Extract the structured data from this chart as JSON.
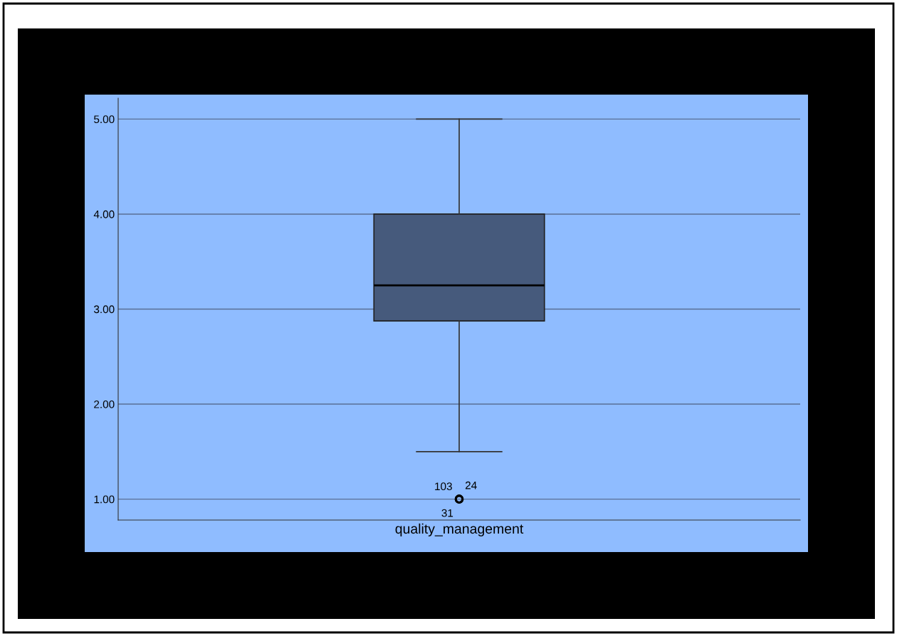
{
  "chart_data": {
    "type": "box",
    "categories": [
      "quality_management"
    ],
    "boxes": [
      {
        "low": 1.5,
        "q1": 2.875,
        "median": 3.25,
        "q3": 4.0,
        "high": 5.0,
        "outliers": [
          1.0,
          1.0,
          1.0
        ]
      }
    ],
    "color": "#465a7c",
    "ylim": [
      0.78,
      5.22
    ],
    "yticks": [
      {
        "value": 1,
        "label": "1.00"
      },
      {
        "value": 2,
        "label": "2.00"
      },
      {
        "value": 3,
        "label": "3.00"
      },
      {
        "value": 4,
        "label": "4.00"
      },
      {
        "value": 5,
        "label": "5.00"
      }
    ],
    "grid": "y",
    "annotations": [
      "103",
      "24",
      "31"
    ]
  }
}
